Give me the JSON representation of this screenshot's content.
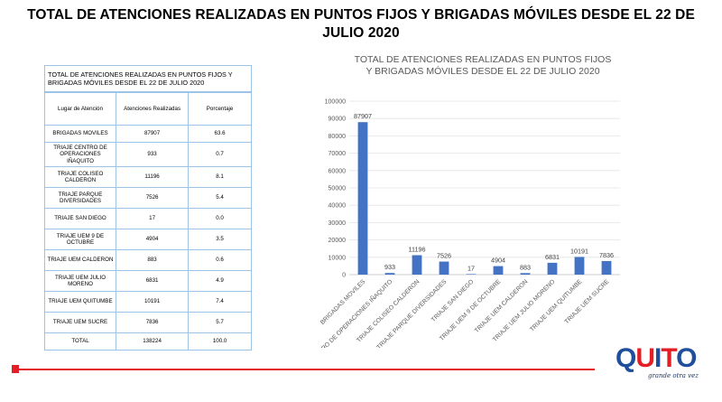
{
  "main_title": "TOTAL DE ATENCIONES REALIZADAS EN PUNTOS FIJOS Y BRIGADAS MÓVILES DESDE EL 22 DE JULIO 2020",
  "table": {
    "title": "TOTAL DE ATENCIONES  REALIZADAS  EN  PUNTOS  FIJOS Y BRIGADAS  MÓVILES  DESDE  EL 22 DE JULIO  2020",
    "headers": [
      "Lugar de Atención",
      "Atenciones Realizadas",
      "Porcentaje"
    ],
    "rows": [
      {
        "lugar": "BRIGADAS MOVILES",
        "atenciones": "87907",
        "porcentaje": "63.6"
      },
      {
        "lugar": "TRIAJE  CENTRO DE OPERACIONES IÑAQUITO",
        "atenciones": "933",
        "porcentaje": "0.7"
      },
      {
        "lugar": "TRIAJE  COLISEO CALDERON",
        "atenciones": "11196",
        "porcentaje": "8.1"
      },
      {
        "lugar": "TRIAJE  PARQUE DIVERSIDADES",
        "atenciones": "7526",
        "porcentaje": "5.4"
      },
      {
        "lugar": "TRIAJE  SAN DIEGO",
        "atenciones": "17",
        "porcentaje": "0.0"
      },
      {
        "lugar": "TRIAJE  UEM  9 DE OCTUBRE",
        "atenciones": "4904",
        "porcentaje": "3.5"
      },
      {
        "lugar": "TRIAJE  UEM CALDERON",
        "atenciones": "883",
        "porcentaje": "0.6"
      },
      {
        "lugar": "TRIAJE  UEM  JULIO MORENO",
        "atenciones": "6831",
        "porcentaje": "4.9"
      },
      {
        "lugar": "TRIAJE  UEM QUITUMBE",
        "atenciones": "10191",
        "porcentaje": "7.4"
      },
      {
        "lugar": "TRIAJE  UEM SUCRE",
        "atenciones": "7836",
        "porcentaje": "5.7"
      },
      {
        "lugar": "TOTAL",
        "atenciones": "138224",
        "porcentaje": "100.0"
      }
    ]
  },
  "chart_data": {
    "type": "bar",
    "title": "TOTAL DE ATENCIONES REALIZADAS EN PUNTOS FIJOS Y BRIGADAS MÓVILES DESDE EL 22 DE JULIO 2020",
    "categories": [
      "BRIGADAS MOVILES",
      "CENTRO DE OPERACIONES IÑAQUITO",
      "TRIAJE COLISEO CALDERON",
      "TRIAJE PARQUE DIVERSIDADES",
      "TRIAJE SAN DIEGO",
      "TRIAJE UEM 9 DE OCTUBRE",
      "TRIAJE UEM CALDERON",
      "TRIAJE UEM JULIO MORENO",
      "TRIAJE UEM QUITUMBE",
      "TRIAJE UEM SUCRE"
    ],
    "values": [
      87907,
      933,
      11196,
      7526,
      17,
      4904,
      883,
      6831,
      10191,
      7836
    ],
    "data_labels": [
      "87907",
      "933",
      "11196",
      "7526",
      "17",
      "4904",
      "883",
      "6831",
      "10191",
      "7836"
    ],
    "ylim": [
      0,
      100000
    ],
    "yticks": [
      0,
      10000,
      20000,
      30000,
      40000,
      50000,
      60000,
      70000,
      80000,
      90000,
      100000
    ],
    "grid": true,
    "legend": "none",
    "bar_color": "#4472c4",
    "xlabel": "",
    "ylabel": ""
  },
  "logo": {
    "letters": [
      "Q",
      "U",
      "I",
      "T",
      "O"
    ],
    "colors": [
      "#1f4e9c",
      "#e31e24",
      "#1f4e9c",
      "#e31e24",
      "#1f4e9c"
    ],
    "tagline": "grande otra vez"
  },
  "accent_color": "#e31e24"
}
